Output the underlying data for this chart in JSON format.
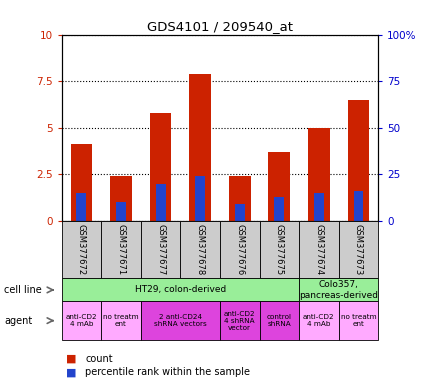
{
  "title": "GDS4101 / 209540_at",
  "samples": [
    "GSM377672",
    "GSM377671",
    "GSM377677",
    "GSM377678",
    "GSM377676",
    "GSM377675",
    "GSM377674",
    "GSM377673"
  ],
  "count_values": [
    4.1,
    2.4,
    5.8,
    7.9,
    2.4,
    3.7,
    5.0,
    6.5
  ],
  "percentile_values": [
    1.5,
    1.0,
    2.0,
    2.4,
    0.9,
    1.3,
    1.5,
    1.6
  ],
  "ylim_left": [
    0,
    10
  ],
  "ylim_right": [
    0,
    100
  ],
  "yticks_left": [
    0,
    2.5,
    5.0,
    7.5,
    10
  ],
  "yticks_right": [
    0,
    25,
    50,
    75,
    100
  ],
  "ytick_labels_left": [
    "0",
    "2.5",
    "5",
    "7.5",
    "10"
  ],
  "ytick_labels_right": [
    "0",
    "25",
    "50",
    "75",
    "100%"
  ],
  "bar_color": "#cc2200",
  "percentile_color": "#2244cc",
  "cell_line_ht29_color": "#99ee99",
  "cell_line_colo_color": "#99ee99",
  "agent_light_color": "#ffaaff",
  "agent_dark_color": "#dd44dd",
  "sample_box_color": "#cccccc",
  "bar_width": 0.55,
  "percentile_bar_width": 0.25,
  "left_tick_color": "#cc2200",
  "right_tick_color": "#0000cc",
  "grid_linestyle": "dotted",
  "grid_color": "#000000",
  "grid_linewidth": 0.8
}
